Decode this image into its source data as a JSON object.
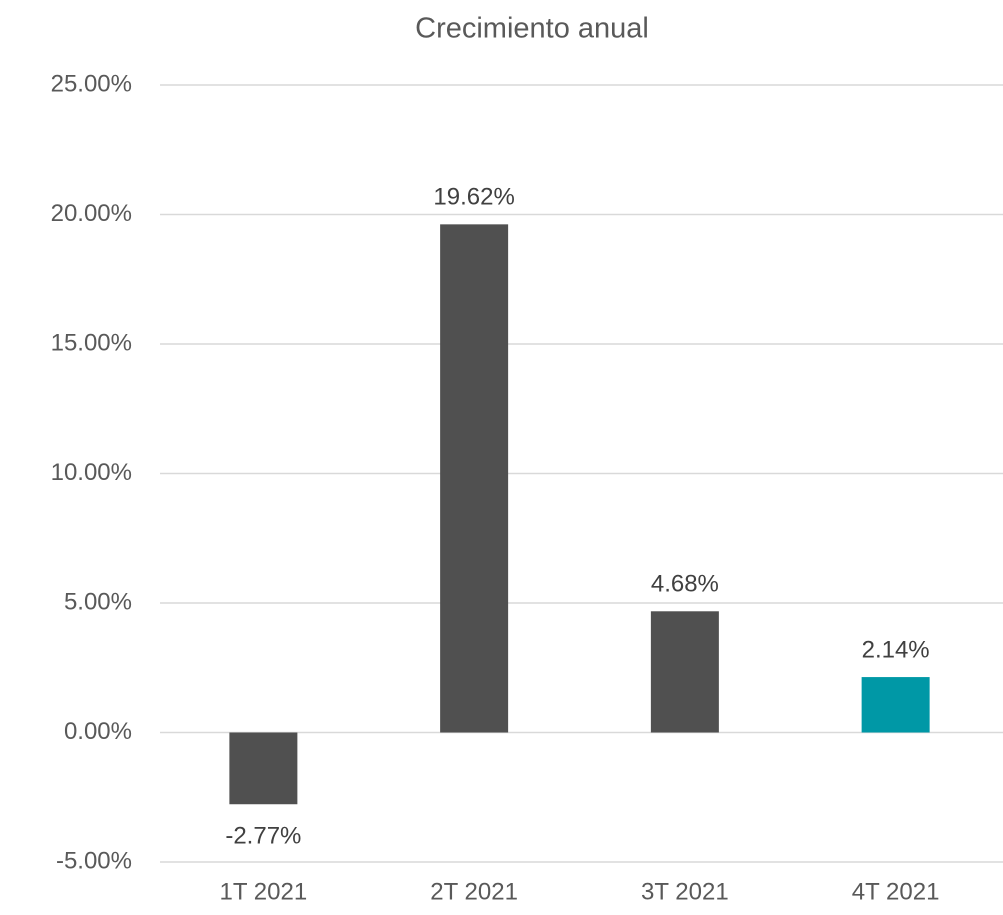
{
  "chart_data": {
    "type": "bar",
    "title": "Crecimiento anual",
    "categories": [
      "1T 2021",
      "2T 2021",
      "3T 2021",
      "4T 2021"
    ],
    "values": [
      -2.77,
      19.62,
      4.68,
      2.14
    ],
    "value_labels": [
      "-2.77%",
      "19.62%",
      "4.68%",
      "2.14%"
    ],
    "colors": [
      "#505050",
      "#505050",
      "#505050",
      "#0098a6"
    ],
    "ylim": [
      -5,
      25
    ],
    "yticks": [
      {
        "value": -5,
        "label": "-5.00%"
      },
      {
        "value": 0,
        "label": "0.00%"
      },
      {
        "value": 5,
        "label": "5.00%"
      },
      {
        "value": 10,
        "label": "10.00%"
      },
      {
        "value": 15,
        "label": "15.00%"
      },
      {
        "value": 20,
        "label": "20.00%"
      },
      {
        "value": 25,
        "label": "25.00%"
      }
    ],
    "grid": true
  }
}
